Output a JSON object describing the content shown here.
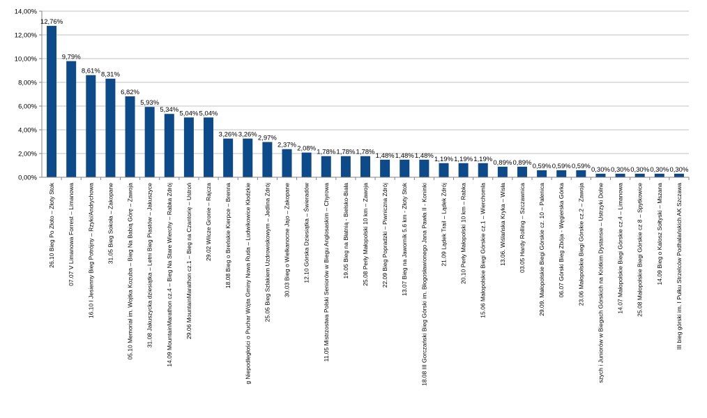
{
  "chart_data": {
    "type": "bar",
    "title": "",
    "xlabel": "",
    "ylabel": "",
    "ylim": [
      0,
      14
    ],
    "y_tick_values": [
      0,
      2,
      4,
      6,
      8,
      10,
      12,
      14
    ],
    "y_tick_labels": [
      "0,00%",
      "2,00%",
      "4,00%",
      "6,00%",
      "8,00%",
      "10,00%",
      "12,00%",
      "14,00%"
    ],
    "grid": true,
    "legend": "none",
    "bar_color": "#0d4a8a",
    "categories": [
      "26.10 Bieg Po Złoto – Złoty Stok",
      "07.07 V Limanowa Forrest – Limanowa",
      "16.10 I Jesienny Bieg Potrójny – Rzyki/Andrychowa",
      "31.05 Bieg Sokoła – Zakopane",
      "05.10 Memoriał im. Wojtka Kozuba – Bieg Na Babią Górę – Zawoja",
      "31.08 Jakuszycka dziesiątka – Letni Bieg Piastów – Jakuszyce",
      "14.09 MountainMarathon cz.4 – Bieg Na Stare Wierchy – Rabka Zdrój",
      "29.06 MountainMarathon cz.1 – Bieg na Czantorię – Ustroń",
      "29.02 Wilcze Gronie – Rajcza",
      "18.08 Bieg o Breńskie Kierpce – Brenna",
      "g Niepodległości o Puchar Wójta Gminy Nowa Ruda – Ludwikowice Kłodzkie",
      "25.05 Bieg Szlakiem Uzdrowiskowym – Jedlina Zdrój",
      "30.03 Bieg o Wielkanocne Jajo – Zakopane",
      "12.10 Górska Dziesiątka – Świeradów",
      "11.05 Mistrzostwa Polski Seniorów w Biegu Anglosaskim – Chyrowa",
      "19.05 Bieg na Błatnią - Bielsko-Biała",
      "25.08 Perły Małopolski 10 km – Zawoja",
      "22.09 Bieg Popradzki – Piwniczna Zdrój",
      "13.07 Bieg na Jaworník 5.6 km - Złoty Stok",
      "18.08 III Gorczański Bieg Górski im. Błogosławionego Jana Pawła II - Koninki",
      "21.09 Lądek Trail – Lądek Zdrój",
      "20.10 Perły Małopolski 10 km – Rabka",
      "15.06 Małopolskie Biegi Górskie cz.1 – Wierchomla",
      "13.06. Wiślańska Kryka – Wisła",
      "03.05 Hardy Rolling – Szczawnica",
      "29.09. Małopolskie Biegi Górskie cz. 10 – Palenica",
      "06.07 Górski Bieg Zbója - Węgierska Górka",
      "23.06 Małopolskie Biegi Górskie cz.2 – Zawoja",
      "szych i Juniorów w Biegach Górskich na Krótkim Dystansie – Ustrzyki Dolne",
      "14.07 Małopolskie Biegi Górskie cz.4 – Limanowa",
      "25.08 Małopolskie Biegi Górskie cz 8 – Spytkowice",
      "14.09 Bieg o Kalosz Sołtyski – Mszana",
      "III bieg górski im. I Pułku Strzelców Podhalańskich AK Szczawa"
    ],
    "values": [
      12.76,
      9.79,
      8.61,
      8.31,
      6.82,
      5.93,
      5.34,
      5.04,
      5.04,
      3.26,
      3.26,
      2.97,
      2.37,
      2.08,
      1.78,
      1.78,
      1.78,
      1.48,
      1.48,
      1.48,
      1.19,
      1.19,
      1.19,
      0.89,
      0.89,
      0.59,
      0.59,
      0.59,
      0.3,
      0.3,
      0.3,
      0.3,
      0.3
    ],
    "data_labels": [
      "12,76%",
      "9,79%",
      "8,61%",
      "8,31%",
      "6,82%",
      "5,93%",
      "5,34%",
      "5,04%",
      "5,04%",
      "3,26%",
      "3,26%",
      "2,97%",
      "2,37%",
      "2,08%",
      "1,78%",
      "1,78%",
      "1,78%",
      "1,48%",
      "1,48%",
      "1,48%",
      "1,19%",
      "1,19%",
      "1,19%",
      "0,89%",
      "0,89%",
      "0,59%",
      "0,59%",
      "0,59%",
      "0,30%",
      "0,30%",
      "0,30%",
      "0,30%",
      "0,30%"
    ]
  }
}
